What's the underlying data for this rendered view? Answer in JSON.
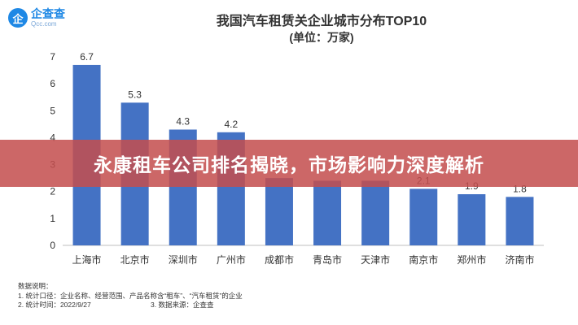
{
  "logo": {
    "mark": "企",
    "name": "企查查",
    "domain": "Qcc.com"
  },
  "banner": {
    "text": "永康租车公司排名揭晓，市场影响力深度解析"
  },
  "chart_data": {
    "type": "bar",
    "title": "我国汽车租赁关企业城市分布TOP10",
    "subtitle": "(单位：万家)",
    "categories": [
      "上海市",
      "北京市",
      "深圳市",
      "广州市",
      "成都市",
      "青岛市",
      "天津市",
      "南京市",
      "郑州市",
      "济南市"
    ],
    "values": [
      6.7,
      5.3,
      4.3,
      4.2,
      2.5,
      2.4,
      2.4,
      2.1,
      1.9,
      1.8
    ],
    "value_labels": [
      "6.7",
      "5.3",
      "4.3",
      "4.2",
      "",
      "",
      "",
      "2.1",
      "1.9",
      "1.8"
    ],
    "ylim": [
      0,
      7
    ],
    "yticks": [
      "0",
      "1",
      "2",
      "3",
      "4",
      "5",
      "6",
      "7"
    ],
    "xlabel": "",
    "ylabel": "",
    "grid": false,
    "bar_color": "#4472c4"
  },
  "notes": {
    "heading": "数据说明：",
    "items": [
      "1. 统计口径：企业名称、经营范围、产品名称含“租车”、“汽车租赁”的企业",
      "2. 统计时间：2022/9/27",
      "3. 数据来源：企查查"
    ]
  }
}
